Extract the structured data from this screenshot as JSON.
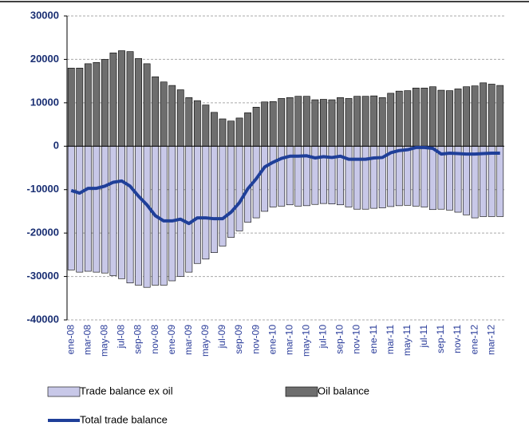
{
  "chart_data": {
    "type": "bar",
    "categories": [
      "ene-08",
      null,
      "mar-08",
      null,
      "may-08",
      null,
      "jul-08",
      null,
      "sep-08",
      null,
      "nov-08",
      null,
      "ene-09",
      null,
      "mar-09",
      null,
      "may-09",
      null,
      "jul-09",
      null,
      "sep-09",
      null,
      "nov-09",
      null,
      "ene-10",
      null,
      "mar-10",
      null,
      "may-10",
      null,
      "jul-10",
      null,
      "sep-10",
      null,
      "nov-10",
      null,
      "ene-11",
      null,
      "mar-11",
      null,
      "may-11",
      null,
      "jul-11",
      null,
      "sep-11",
      null,
      "nov-11",
      null,
      "ene-12",
      null,
      "mar-12",
      null
    ],
    "series": [
      {
        "name": "Trade balance ex oil",
        "type": "bar",
        "color": "#c8c8e8",
        "values": [
          -28500,
          -29000,
          -28800,
          -29000,
          -29200,
          -29800,
          -30500,
          -31500,
          -32000,
          -32500,
          -32000,
          -32000,
          -31000,
          -30000,
          -29000,
          -27000,
          -26000,
          -24500,
          -23000,
          -21000,
          -19500,
          -17500,
          -16500,
          -15000,
          -14000,
          -13800,
          -13500,
          -13800,
          -13700,
          -13400,
          -13200,
          -13300,
          -13500,
          -14000,
          -14500,
          -14500,
          -14300,
          -14200,
          -13900,
          -13700,
          -13600,
          -13800,
          -14000,
          -14600,
          -14500,
          -14700,
          -15200,
          -15800,
          -16500,
          -16200,
          -16200,
          -16200
        ]
      },
      {
        "name": "Oil balance",
        "type": "bar",
        "color": "#6e6e6e",
        "values": [
          18000,
          18000,
          19000,
          19300,
          20000,
          21500,
          22000,
          21800,
          20200,
          19000,
          16000,
          14800,
          14000,
          13000,
          11200,
          10500,
          9500,
          7800,
          6300,
          5800,
          6500,
          7700,
          9000,
          10200,
          10300,
          11000,
          11200,
          11500,
          11500,
          10700,
          10800,
          10700,
          11200,
          11000,
          11500,
          11500,
          11600,
          11200,
          12200,
          12700,
          12800,
          13400,
          13400,
          13700,
          12900,
          12800,
          13200,
          13700,
          13900,
          14600,
          14300,
          14000
        ]
      },
      {
        "name": "Total trade balance",
        "type": "line",
        "color": "#1f3f99",
        "values": [
          -10200,
          -10800,
          -9700,
          -9700,
          -9200,
          -8300,
          -8000,
          -9200,
          -11500,
          -13500,
          -16000,
          -17200,
          -17200,
          -16800,
          -17800,
          -16500,
          -16500,
          -16700,
          -16700,
          -15200,
          -13000,
          -9800,
          -7500,
          -4800,
          -3700,
          -2800,
          -2300,
          -2300,
          -2200,
          -2700,
          -2400,
          -2600,
          -2300,
          -3000,
          -3000,
          -3000,
          -2700,
          -2600,
          -1500,
          -1000,
          -800,
          -300,
          -300,
          -500,
          -1800,
          -1600,
          -1700,
          -1800,
          -1800,
          -1700,
          -1600,
          -1600
        ]
      }
    ],
    "ylim": [
      -40000,
      30000
    ],
    "yticks": [
      -40000,
      -30000,
      -20000,
      -10000,
      0,
      10000,
      20000,
      30000
    ],
    "grid": true,
    "legend": "bottom"
  }
}
